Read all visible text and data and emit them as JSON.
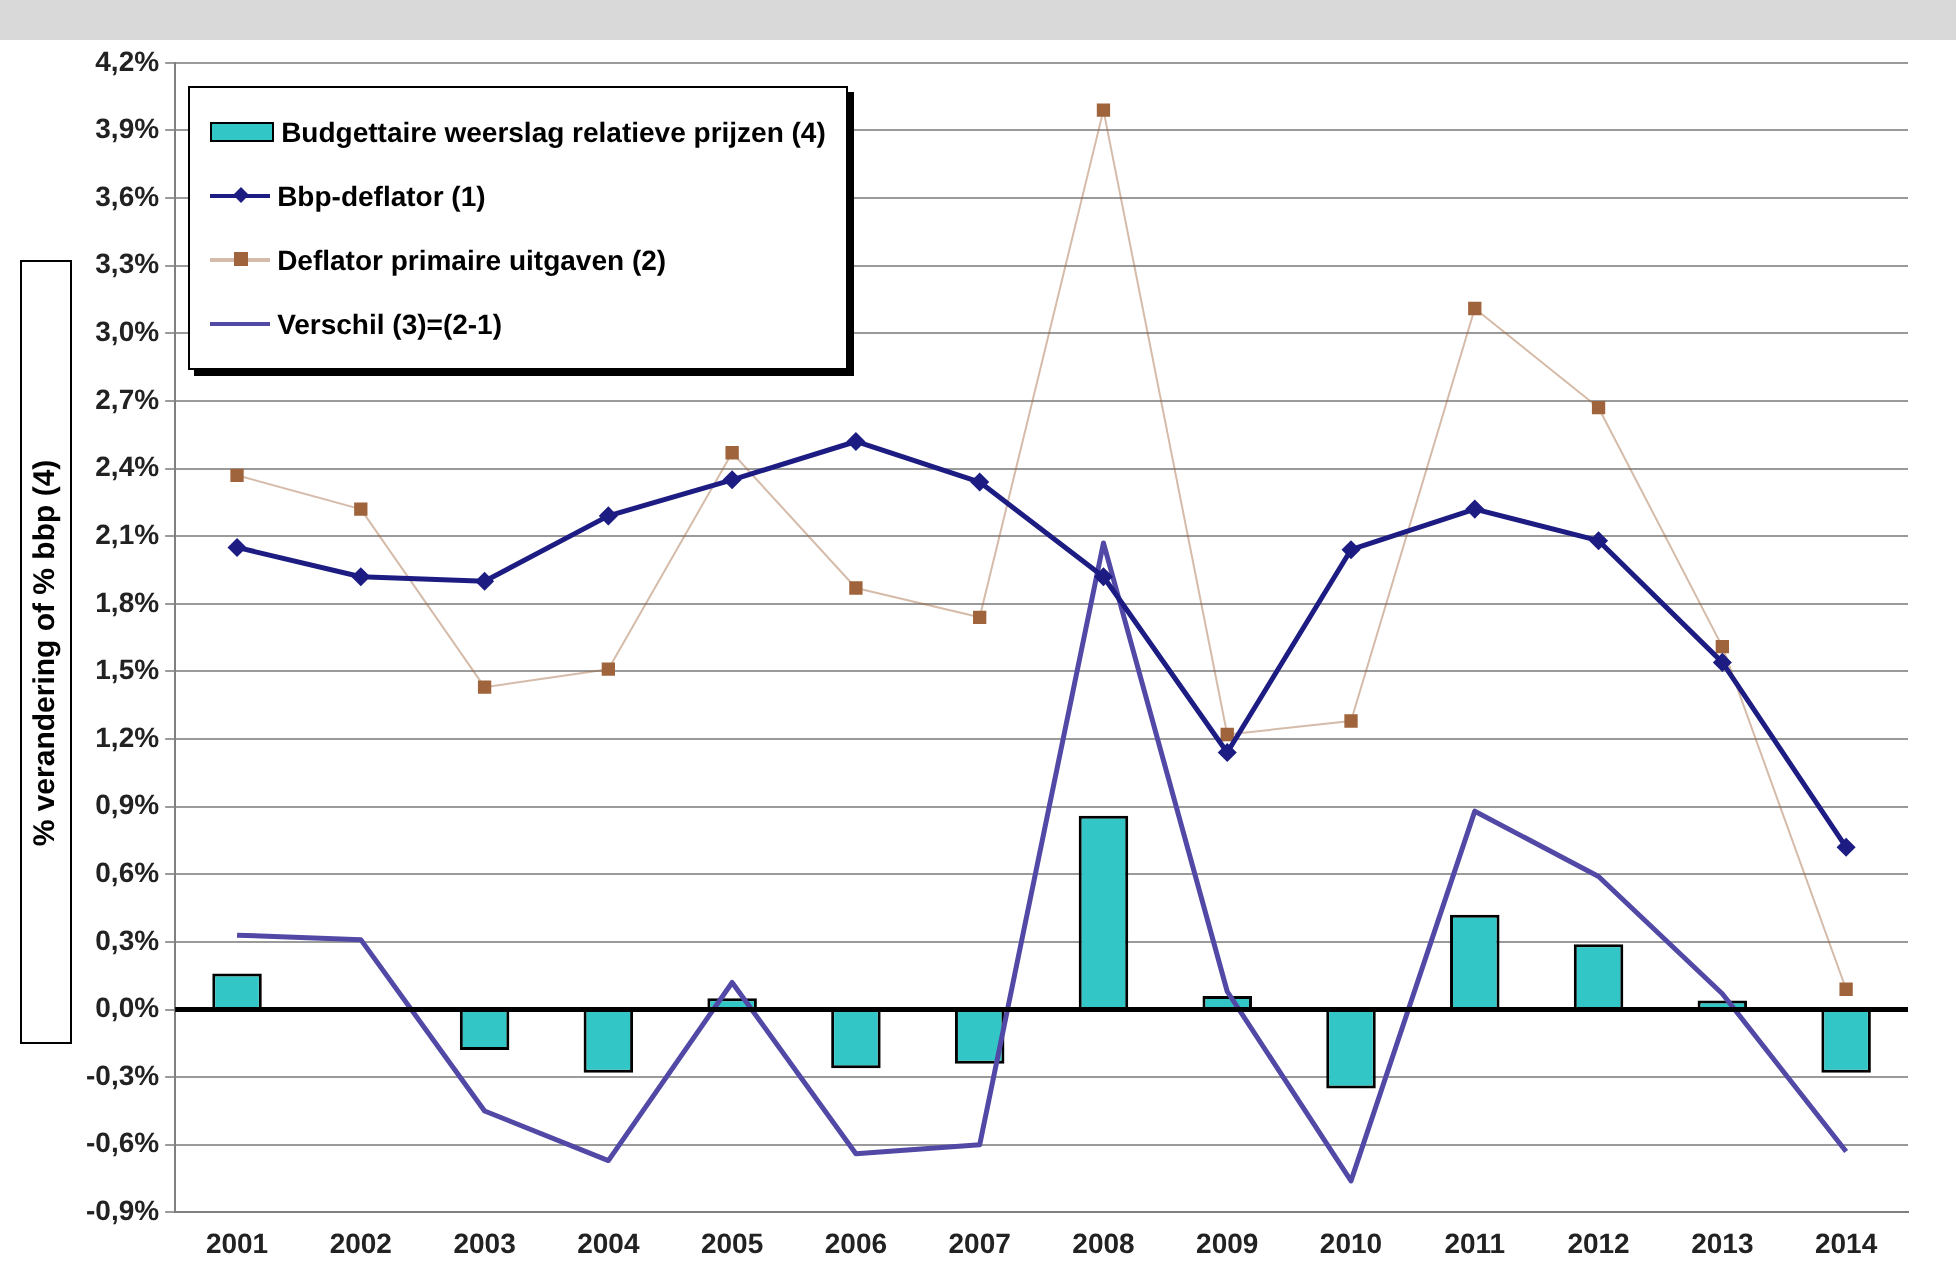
{
  "chart_data": {
    "type": "bar",
    "ylabel": "% verandering of % bbp (4)",
    "categories": [
      "2001",
      "2002",
      "2003",
      "2004",
      "2005",
      "2006",
      "2007",
      "2008",
      "2009",
      "2010",
      "2011",
      "2012",
      "2013",
      "2014"
    ],
    "series": [
      {
        "name": "Budgettaire weerslag relatieve prijzen (4)",
        "type": "bar",
        "color": "#33c6c6",
        "values": [
          0.16,
          null,
          -0.18,
          -0.28,
          0.05,
          -0.26,
          -0.24,
          0.86,
          0.06,
          -0.35,
          0.42,
          0.29,
          0.04,
          -0.28
        ]
      },
      {
        "name": "Bbp-deflator (1)",
        "type": "line",
        "color": "#1c1c82",
        "marker": "diamond",
        "values": [
          2.05,
          1.92,
          1.9,
          2.19,
          2.35,
          2.52,
          2.34,
          1.92,
          1.14,
          2.04,
          2.22,
          2.08,
          1.54,
          0.72
        ]
      },
      {
        "name": "Deflator primaire uitgaven (2)",
        "type": "line",
        "color": "#a0643c",
        "marker": "square",
        "values": [
          2.37,
          2.22,
          1.43,
          1.51,
          2.47,
          1.87,
          1.74,
          3.99,
          1.22,
          1.28,
          3.11,
          2.67,
          1.61,
          0.09
        ]
      },
      {
        "name": "Verschil (3)=(2-1)",
        "type": "line",
        "color": "#5249a6",
        "marker": "none",
        "values": [
          0.33,
          0.31,
          -0.45,
          -0.67,
          0.12,
          -0.64,
          -0.6,
          2.07,
          0.08,
          -0.76,
          0.88,
          0.59,
          0.07,
          -0.63
        ]
      }
    ],
    "ylim": [
      -0.9,
      4.2
    ],
    "yticks": [
      {
        "value": -0.9,
        "label": "-0,9%"
      },
      {
        "value": -0.6,
        "label": "-0,6%"
      },
      {
        "value": -0.3,
        "label": "-0,3%"
      },
      {
        "value": 0,
        "label": "0,0%"
      },
      {
        "value": 0.3,
        "label": "0,3%"
      },
      {
        "value": 0.6,
        "label": "0,6%"
      },
      {
        "value": 0.9,
        "label": "0,9%"
      },
      {
        "value": 1.2,
        "label": "1,2%"
      },
      {
        "value": 1.5,
        "label": "1,5%"
      },
      {
        "value": 1.8,
        "label": "1,8%"
      },
      {
        "value": 2.1,
        "label": "2,1%"
      },
      {
        "value": 2.4,
        "label": "2,4%"
      },
      {
        "value": 2.7,
        "label": "2,7%"
      },
      {
        "value": 3.0,
        "label": "3,0%"
      },
      {
        "value": 3.3,
        "label": "3,3%"
      },
      {
        "value": 3.6,
        "label": "3,6%"
      },
      {
        "value": 3.9,
        "label": "3,9%"
      },
      {
        "value": 4.2,
        "label": "4,2%"
      }
    ],
    "grid": "y",
    "legend": "top left"
  }
}
